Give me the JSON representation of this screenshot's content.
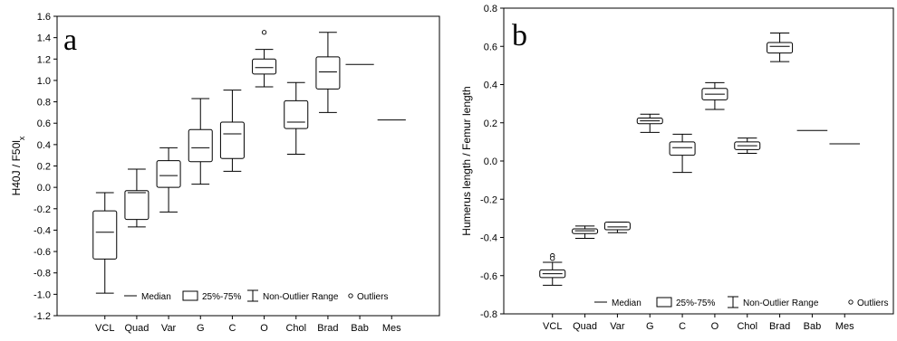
{
  "chart_data": [
    {
      "panel_label": "a",
      "type": "box",
      "ylabel": "H40J / F50l",
      "ylabel_subscript": "x",
      "ylim": [
        -1.2,
        1.6
      ],
      "yticks": [
        -1.2,
        -1.0,
        -0.8,
        -0.6,
        -0.4,
        -0.2,
        0.0,
        0.2,
        0.4,
        0.6,
        0.8,
        1.0,
        1.2,
        1.4,
        1.6
      ],
      "ytick_labels": [
        "-1.2",
        "-1.0",
        "-0.8",
        "-0.6",
        "-0.4",
        "-0.2",
        "0.0",
        "0.2",
        "0.4",
        "0.6",
        "0.8",
        "1.0",
        "1.2",
        "1.4",
        "1.6"
      ],
      "categories": [
        "VCL",
        "Quad",
        "Var",
        "G",
        "C",
        "O",
        "Chol",
        "Brad",
        "Bab",
        "Mes"
      ],
      "boxes": [
        {
          "median": -0.42,
          "q1": -0.67,
          "q3": -0.22,
          "min": -0.99,
          "max": -0.05,
          "outliers": []
        },
        {
          "median": -0.05,
          "q1": -0.3,
          "q3": -0.03,
          "min": -0.37,
          "max": 0.17,
          "outliers": []
        },
        {
          "median": 0.11,
          "q1": 0.0,
          "q3": 0.25,
          "min": -0.23,
          "max": 0.37,
          "outliers": []
        },
        {
          "median": 0.37,
          "q1": 0.24,
          "q3": 0.54,
          "min": 0.03,
          "max": 0.83,
          "outliers": []
        },
        {
          "median": 0.5,
          "q1": 0.27,
          "q3": 0.61,
          "min": 0.15,
          "max": 0.91,
          "outliers": []
        },
        {
          "median": 1.12,
          "q1": 1.06,
          "q3": 1.2,
          "min": 0.94,
          "max": 1.29,
          "outliers": [
            1.45
          ]
        },
        {
          "median": 0.61,
          "q1": 0.55,
          "q3": 0.81,
          "min": 0.31,
          "max": 0.98,
          "outliers": []
        },
        {
          "median": 1.08,
          "q1": 0.92,
          "q3": 1.22,
          "min": 0.7,
          "max": 1.45,
          "outliers": []
        },
        {
          "median": 1.15,
          "q1": null,
          "q3": null,
          "min": null,
          "max": null,
          "outliers": []
        },
        {
          "median": 0.63,
          "q1": null,
          "q3": null,
          "min": null,
          "max": null,
          "outliers": []
        }
      ],
      "legend": {
        "median": "Median",
        "box": "25%-75%",
        "range": "Non-Outlier Range",
        "outliers": "Outliers"
      },
      "legend_position": "bottom",
      "grid": false
    },
    {
      "panel_label": "b",
      "type": "box",
      "ylabel": "Humerus length / Femur length",
      "ylim": [
        -0.8,
        0.8
      ],
      "yticks": [
        -0.8,
        -0.6,
        -0.4,
        -0.2,
        0.0,
        0.2,
        0.4,
        0.6,
        0.8
      ],
      "ytick_labels": [
        "-0.8",
        "-0.6",
        "-0.4",
        "-0.2",
        "0.0",
        "0.2",
        "0.4",
        "0.6",
        "0.8"
      ],
      "categories": [
        "VCL",
        "Quad",
        "Var",
        "G",
        "C",
        "O",
        "Chol",
        "Brad",
        "Bab",
        "Mes"
      ],
      "boxes": [
        {
          "median": -0.59,
          "q1": -0.61,
          "q3": -0.57,
          "min": -0.65,
          "max": -0.53,
          "outliers": [
            -0.495,
            -0.51
          ]
        },
        {
          "median": -0.365,
          "q1": -0.38,
          "q3": -0.355,
          "min": -0.405,
          "max": -0.34,
          "outliers": []
        },
        {
          "median": -0.345,
          "q1": -0.36,
          "q3": -0.32,
          "min": -0.375,
          "max": -0.32,
          "outliers": []
        },
        {
          "median": 0.21,
          "q1": 0.195,
          "q3": 0.225,
          "min": 0.15,
          "max": 0.245,
          "outliers": []
        },
        {
          "median": 0.07,
          "q1": 0.03,
          "q3": 0.1,
          "min": -0.06,
          "max": 0.14,
          "outliers": []
        },
        {
          "median": 0.35,
          "q1": 0.32,
          "q3": 0.38,
          "min": 0.27,
          "max": 0.41,
          "outliers": []
        },
        {
          "median": 0.08,
          "q1": 0.06,
          "q3": 0.1,
          "min": 0.04,
          "max": 0.12,
          "outliers": []
        },
        {
          "median": 0.6,
          "q1": 0.565,
          "q3": 0.62,
          "min": 0.52,
          "max": 0.67,
          "outliers": []
        },
        {
          "median": 0.16,
          "q1": null,
          "q3": null,
          "min": null,
          "max": null,
          "outliers": []
        },
        {
          "median": 0.09,
          "q1": null,
          "q3": null,
          "min": null,
          "max": null,
          "outliers": []
        }
      ],
      "legend": {
        "median": "Median",
        "box": "25%-75%",
        "range": "Non-Outlier Range",
        "outliers": "Outliers"
      },
      "legend_position": "bottom",
      "grid": false
    }
  ]
}
